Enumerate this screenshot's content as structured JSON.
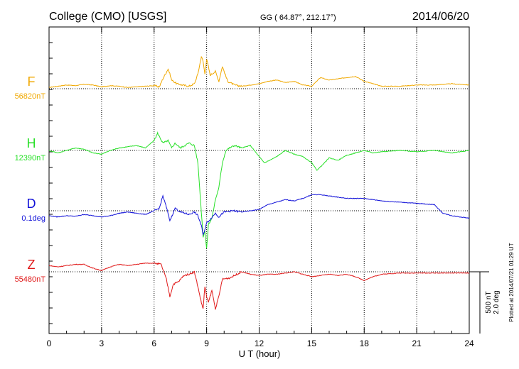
{
  "header": {
    "station": "College (CMO)  [USGS]",
    "coords": "GG ( 64.87°, 212.17°)",
    "date": "2014/06/20"
  },
  "plotted_note": "Plotted at 2014/07/21 01:29 UT",
  "chart_data": {
    "type": "line",
    "title": "College (CMO)  [USGS]",
    "xlabel": "U T (hour)",
    "ylabel": "",
    "xlim": [
      0,
      24
    ],
    "x_ticks": [
      "0",
      "3",
      "6",
      "9",
      "12",
      "15",
      "18",
      "21",
      "24"
    ],
    "grid": true,
    "scale_bar": {
      "label1": "500 nT",
      "label2": "2.0 deg"
    },
    "series": [
      {
        "name": "F",
        "baseline_label": "56820nT",
        "color": "#f0a800",
        "offset_nT": 0,
        "x": [
          0,
          0.5,
          1,
          1.5,
          2,
          2.5,
          3,
          3.5,
          4,
          4.5,
          5,
          5.5,
          6,
          6.3,
          6.5,
          6.8,
          6.9,
          7.0,
          7.3,
          7.6,
          8.0,
          8.3,
          8.5,
          8.7,
          8.8,
          8.9,
          9.0,
          9.1,
          9.2,
          9.5,
          9.7,
          9.9,
          10.2,
          10.6,
          11,
          11.5,
          12,
          12.5,
          13,
          13.5,
          14,
          14.5,
          15,
          15.5,
          16,
          16.5,
          17,
          17.5,
          18,
          18.5,
          19,
          20,
          21,
          22,
          23,
          24
        ],
        "y": [
          10,
          20,
          30,
          25,
          35,
          30,
          15,
          25,
          20,
          10,
          15,
          20,
          25,
          15,
          80,
          160,
          120,
          70,
          40,
          30,
          20,
          40,
          120,
          260,
          220,
          120,
          240,
          180,
          110,
          140,
          60,
          180,
          60,
          30,
          20,
          30,
          40,
          60,
          70,
          50,
          60,
          30,
          20,
          90,
          70,
          80,
          90,
          100,
          60,
          40,
          20,
          20,
          30,
          30,
          40,
          30
        ]
      },
      {
        "name": "H",
        "baseline_label": "12390nT",
        "color": "#28e028",
        "offset_nT": 0,
        "x": [
          0,
          0.5,
          1,
          1.5,
          2,
          2.5,
          3,
          3.5,
          4,
          4.5,
          5,
          5.5,
          6,
          6.2,
          6.5,
          6.8,
          7.0,
          7.2,
          7.5,
          8.0,
          8.3,
          8.5,
          8.7,
          8.8,
          8.9,
          9.0,
          9.1,
          9.3,
          9.5,
          9.7,
          9.9,
          10.1,
          10.3,
          10.6,
          11,
          11.5,
          12,
          12.3,
          12.6,
          13,
          13.5,
          14,
          14.5,
          15,
          15.3,
          15.6,
          16,
          16.5,
          17,
          17.5,
          18,
          18.5,
          19,
          20,
          21,
          22,
          23,
          24
        ],
        "y": [
          0,
          -20,
          0,
          20,
          10,
          -20,
          -30,
          0,
          20,
          30,
          40,
          20,
          80,
          140,
          60,
          80,
          20,
          60,
          20,
          60,
          40,
          -100,
          -500,
          -700,
          -650,
          -800,
          -600,
          -550,
          -400,
          -300,
          -100,
          0,
          20,
          40,
          20,
          40,
          -50,
          -100,
          -80,
          -50,
          0,
          -30,
          -50,
          -100,
          -160,
          -120,
          -60,
          -80,
          -40,
          -20,
          0,
          -20,
          -10,
          0,
          -10,
          0,
          -20,
          0
        ]
      },
      {
        "name": "D",
        "baseline_label": "0.1deg",
        "color": "#1010d8",
        "offset_nT": 0,
        "x": [
          0,
          0.5,
          1,
          1.5,
          2,
          2.5,
          3,
          3.5,
          4,
          4.5,
          5,
          5.5,
          6,
          6.3,
          6.5,
          6.7,
          6.9,
          7.2,
          7.5,
          8.0,
          8.3,
          8.5,
          8.7,
          8.8,
          8.9,
          9.0,
          9.2,
          9.5,
          9.7,
          10,
          10.5,
          11,
          11.5,
          12,
          12.5,
          13,
          13.5,
          14,
          14.5,
          15,
          15.5,
          16,
          16.5,
          17,
          17.5,
          18,
          18.5,
          19,
          20,
          21,
          22,
          22.5,
          23,
          24
        ],
        "y": [
          -40,
          -50,
          -40,
          -45,
          -30,
          -40,
          -50,
          -40,
          -20,
          -10,
          -20,
          -30,
          0,
          20,
          120,
          30,
          -80,
          20,
          -10,
          -30,
          -10,
          -40,
          -120,
          -200,
          -150,
          -100,
          -70,
          -20,
          -50,
          -10,
          0,
          -10,
          0,
          10,
          50,
          70,
          90,
          80,
          100,
          130,
          130,
          120,
          110,
          100,
          100,
          100,
          90,
          80,
          70,
          60,
          50,
          -20,
          -40,
          -60
        ]
      },
      {
        "name": "Z",
        "baseline_label": "55480nT",
        "color": "#e01818",
        "offset_nT": 0,
        "x": [
          0,
          0.5,
          1,
          1.5,
          2,
          2.5,
          3,
          3.5,
          4,
          4.5,
          5,
          5.5,
          6,
          6.4,
          6.7,
          6.9,
          7.1,
          7.4,
          7.7,
          8.0,
          8.3,
          8.5,
          8.7,
          8.8,
          8.9,
          9.0,
          9.1,
          9.3,
          9.5,
          9.7,
          9.9,
          10.3,
          10.6,
          11,
          11.5,
          12,
          12.5,
          13,
          13.5,
          14,
          14.5,
          15,
          15.5,
          16,
          16.5,
          17,
          17.5,
          18,
          18.5,
          19,
          20,
          21,
          22,
          23,
          24
        ],
        "y": [
          50,
          40,
          50,
          60,
          60,
          30,
          10,
          40,
          60,
          50,
          60,
          70,
          70,
          60,
          -60,
          -200,
          -100,
          -80,
          -30,
          -20,
          0,
          -120,
          -250,
          -300,
          -120,
          -200,
          -250,
          -150,
          -300,
          -200,
          -60,
          -50,
          -30,
          0,
          -20,
          -30,
          -20,
          -20,
          -10,
          0,
          -20,
          -40,
          -30,
          -20,
          -30,
          -20,
          -40,
          -70,
          -40,
          -20,
          -10,
          -10,
          -10,
          -10,
          -10
        ]
      }
    ]
  }
}
